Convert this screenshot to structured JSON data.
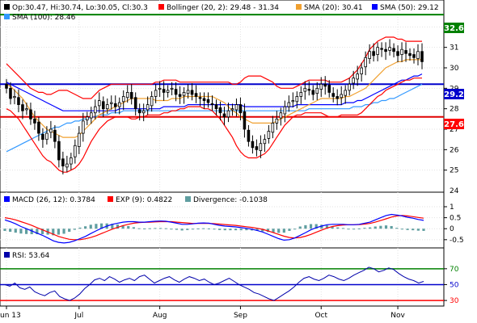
{
  "colors": {
    "candle": "#000000",
    "bollinger": "#ff0000",
    "sma20": "#f0a030",
    "sma50": "#0000ff",
    "sma100": "#3399ff",
    "hline_top": "#008000",
    "hline_mid": "#0000cc",
    "hline_low": "#e00000",
    "macd": "#0000ff",
    "exp": "#ff0000",
    "divergence": "#5f9ea0",
    "rsi": "#0000aa",
    "rsi70": "#008000",
    "rsi50": "#0000cc",
    "rsi30": "#ff0000",
    "price_label_top_bg": "#008000",
    "price_label_mid_bg": "#0000cc",
    "price_label_low_bg": "#ff0000"
  },
  "legend_price": {
    "ohlc": "Op:30.47, Hi:30.74, Lo:30.05, Cl:30.3",
    "bollinger": "Bollinger (20, 2): 29.48 - 31.34",
    "sma20": "SMA (20): 30.41",
    "sma50": "SMA (50): 29.12",
    "sma100": "SMA (100): 28.46"
  },
  "legend_macd": {
    "macd": "MACD (26, 12): 0.3784",
    "exp": "EXP (9): 0.4822",
    "divergence": "Divergence: -0.1038"
  },
  "legend_rsi": {
    "rsi": "RSI: 53.64"
  },
  "price_labels": {
    "top": "32.6",
    "mid": "29.2",
    "low": "27.6"
  },
  "chart_data": [
    {
      "type": "candlestick",
      "ylim": [
        24,
        33
      ],
      "yticks": [
        25,
        26,
        27,
        28,
        29,
        30,
        31,
        32
      ],
      "xticks": [
        "un 13",
        "Jul",
        "Aug",
        "Sep",
        "Oct",
        "Nov"
      ],
      "horizontal_lines": [
        32.6,
        29.2,
        27.6
      ],
      "closes": [
        29.0,
        28.5,
        28.6,
        28.2,
        27.9,
        28.0,
        27.5,
        27.3,
        26.8,
        26.5,
        26.8,
        27.0,
        26.4,
        25.5,
        25.2,
        25.3,
        25.6,
        26.2,
        26.8,
        27.4,
        27.6,
        27.8,
        28.1,
        28.4,
        28.0,
        28.2,
        28.3,
        28.1,
        28.3,
        28.6,
        28.8,
        28.5,
        28.0,
        27.8,
        27.9,
        28.2,
        28.6,
        28.9,
        29.0,
        28.8,
        28.9,
        29.0,
        28.7,
        28.6,
        28.8,
        28.9,
        28.7,
        28.6,
        28.5,
        28.4,
        28.3,
        28.2,
        28.0,
        27.8,
        27.6,
        27.9,
        28.0,
        28.2,
        27.8,
        27.0,
        26.4,
        26.1,
        26.0,
        26.3,
        26.5,
        26.9,
        27.3,
        27.5,
        27.8,
        28.1,
        28.3,
        28.4,
        28.6,
        28.8,
        29.0,
        28.9,
        28.7,
        29.0,
        29.2,
        29.1,
        28.8,
        28.6,
        28.5,
        28.7,
        28.9,
        29.2,
        29.5,
        29.7,
        30.0,
        30.5,
        30.8,
        30.6,
        31.0,
        30.9,
        30.8,
        31.0,
        30.8,
        30.6,
        30.9,
        30.7,
        30.6,
        30.5,
        30.8,
        30.3
      ],
      "bollinger_upper": [
        30.2,
        30.0,
        29.8,
        29.6,
        29.4,
        29.2,
        29.0,
        28.9,
        28.8,
        28.8,
        28.7,
        28.7,
        28.8,
        28.9,
        28.9,
        28.9,
        28.8,
        28.7,
        28.6,
        28.5,
        28.5,
        28.5,
        28.7,
        28.9,
        29.0,
        29.1,
        29.2,
        29.2,
        29.2,
        29.2,
        29.2,
        29.2,
        29.2,
        29.2,
        29.2,
        29.2,
        29.2,
        29.3,
        29.3,
        29.4,
        29.4,
        29.4,
        29.4,
        29.3,
        29.3,
        29.3,
        29.3,
        29.3,
        29.3,
        29.3,
        29.3,
        29.3,
        29.3,
        29.3,
        29.3,
        29.3,
        29.2,
        29.2,
        29.3,
        29.5,
        29.6,
        29.6,
        29.6,
        29.6,
        29.5,
        29.4,
        29.3,
        29.1,
        29.0,
        29.0,
        29.0,
        29.0,
        29.1,
        29.2,
        29.3,
        29.4,
        29.4,
        29.4,
        29.4,
        29.4,
        29.3,
        29.3,
        29.3,
        29.3,
        29.4,
        29.5,
        29.7,
        29.9,
        30.2,
        30.5,
        30.9,
        31.1,
        31.3,
        31.4,
        31.5,
        31.5,
        31.5,
        31.4,
        31.4,
        31.3,
        31.3,
        31.3,
        31.3,
        31.3
      ],
      "bollinger_lower": [
        28.0,
        27.9,
        27.7,
        27.5,
        27.2,
        26.9,
        26.6,
        26.3,
        26.0,
        25.7,
        25.5,
        25.4,
        25.2,
        25.0,
        24.9,
        24.9,
        25.0,
        25.1,
        25.3,
        25.6,
        26.0,
        26.4,
        26.7,
        27.0,
        27.2,
        27.4,
        27.5,
        27.6,
        27.6,
        27.6,
        27.6,
        27.5,
        27.5,
        27.6,
        27.6,
        27.7,
        27.7,
        27.7,
        27.7,
        27.8,
        27.8,
        27.9,
        27.9,
        28.0,
        28.0,
        28.1,
        28.1,
        28.1,
        28.1,
        28.0,
        28.0,
        27.9,
        27.7,
        27.5,
        27.2,
        26.9,
        26.6,
        26.2,
        25.9,
        25.7,
        25.6,
        25.6,
        25.6,
        25.7,
        25.8,
        26.0,
        26.3,
        26.6,
        26.9,
        27.2,
        27.4,
        27.6,
        27.7,
        27.7,
        27.8,
        27.8,
        27.8,
        27.8,
        27.8,
        27.7,
        27.6,
        27.6,
        27.6,
        27.7,
        27.7,
        27.7,
        27.7,
        27.7,
        27.8,
        28.0,
        28.2,
        28.4,
        28.6,
        28.7,
        28.9,
        29.0,
        29.1,
        29.2,
        29.3,
        29.4,
        29.4,
        29.5,
        29.5,
        29.5
      ],
      "sma20": [
        29.2,
        29.1,
        28.9,
        28.7,
        28.5,
        28.2,
        27.9,
        27.6,
        27.4,
        27.2,
        27.0,
        26.9,
        26.8,
        26.7,
        26.6,
        26.6,
        26.6,
        26.6,
        26.7,
        26.9,
        27.1,
        27.3,
        27.5,
        27.7,
        27.8,
        27.9,
        28.0,
        28.1,
        28.2,
        28.3,
        28.4,
        28.5,
        28.5,
        28.5,
        28.5,
        28.5,
        28.5,
        28.4,
        28.4,
        28.4,
        28.4,
        28.5,
        28.5,
        28.5,
        28.6,
        28.6,
        28.6,
        28.6,
        28.6,
        28.6,
        28.6,
        28.6,
        28.5,
        28.4,
        28.3,
        28.1,
        27.9,
        27.8,
        27.6,
        27.5,
        27.4,
        27.3,
        27.3,
        27.3,
        27.3,
        27.3,
        27.3,
        27.4,
        27.5,
        27.6,
        27.7,
        27.8,
        27.9,
        28.0,
        28.1,
        28.2,
        28.3,
        28.4,
        28.5,
        28.5,
        28.5,
        28.5,
        28.5,
        28.5,
        28.6,
        28.6,
        28.7,
        28.8,
        28.9,
        29.0,
        29.2,
        29.4,
        29.6,
        29.8,
        30.0,
        30.1,
        30.2,
        30.3,
        30.3,
        30.4,
        30.4,
        30.4,
        30.4,
        30.4
      ],
      "sma50": [
        29.3,
        29.2,
        29.1,
        29.0,
        28.9,
        28.8,
        28.7,
        28.6,
        28.5,
        28.4,
        28.3,
        28.2,
        28.1,
        28.0,
        27.9,
        27.9,
        27.9,
        27.9,
        27.9,
        27.9,
        27.9,
        27.9,
        27.9,
        27.9,
        27.9,
        27.9,
        27.9,
        27.9,
        28.0,
        28.0,
        28.0,
        28.0,
        28.0,
        28.0,
        28.0,
        28.0,
        28.0,
        28.0,
        28.0,
        28.1,
        28.1,
        28.1,
        28.1,
        28.1,
        28.1,
        28.2,
        28.2,
        28.2,
        28.2,
        28.2,
        28.2,
        28.2,
        28.2,
        28.2,
        28.2,
        28.2,
        28.2,
        28.2,
        28.2,
        28.1,
        28.1,
        28.1,
        28.1,
        28.1,
        28.1,
        28.1,
        28.1,
        28.1,
        28.1,
        28.1,
        28.1,
        28.1,
        28.2,
        28.2,
        28.2,
        28.2,
        28.2,
        28.2,
        28.2,
        28.2,
        28.2,
        28.2,
        28.2,
        28.2,
        28.3,
        28.3,
        28.3,
        28.4,
        28.4,
        28.5,
        28.6,
        28.7,
        28.8,
        28.9,
        29.0,
        29.1,
        29.2,
        29.3,
        29.4,
        29.4,
        29.5,
        29.6,
        29.6,
        29.7
      ],
      "sma100": [
        25.9,
        26.0,
        26.1,
        26.2,
        26.3,
        26.4,
        26.5,
        26.6,
        26.7,
        26.8,
        26.9,
        27.0,
        27.1,
        27.1,
        27.2,
        27.3,
        27.3,
        27.4,
        27.4,
        27.5,
        27.5,
        27.6,
        27.6,
        27.7,
        27.7,
        27.7,
        27.8,
        27.8,
        27.8,
        27.9,
        27.9,
        27.9,
        27.9,
        27.9,
        27.9,
        27.9,
        27.9,
        27.9,
        27.9,
        27.9,
        27.9,
        27.9,
        27.9,
        27.9,
        27.9,
        27.9,
        27.9,
        27.9,
        27.9,
        27.9,
        27.9,
        27.9,
        27.9,
        27.9,
        27.9,
        27.9,
        27.9,
        27.9,
        27.9,
        27.9,
        27.9,
        27.9,
        27.9,
        27.9,
        27.9,
        27.9,
        27.9,
        27.9,
        27.9,
        27.9,
        27.9,
        27.9,
        27.9,
        27.9,
        27.9,
        28.0,
        28.0,
        28.0,
        28.0,
        28.0,
        28.0,
        28.0,
        28.0,
        28.0,
        28.0,
        28.0,
        28.1,
        28.1,
        28.1,
        28.2,
        28.2,
        28.3,
        28.3,
        28.4,
        28.4,
        28.5,
        28.5,
        28.6,
        28.7,
        28.8,
        28.9,
        29.0,
        29.1,
        29.2
      ]
    },
    {
      "type": "line",
      "name": "MACD",
      "ylim": [
        -0.8,
        1.0
      ],
      "yticks": [
        1,
        0.5,
        0,
        -0.5
      ],
      "macd": [
        0.4,
        0.32,
        0.22,
        0.1,
        0.0,
        -0.1,
        -0.2,
        -0.3,
        -0.42,
        -0.55,
        -0.62,
        -0.65,
        -0.62,
        -0.55,
        -0.45,
        -0.35,
        -0.22,
        -0.1,
        0.02,
        0.12,
        0.2,
        0.25,
        0.3,
        0.32,
        0.32,
        0.3,
        0.3,
        0.32,
        0.34,
        0.35,
        0.34,
        0.3,
        0.25,
        0.2,
        0.2,
        0.22,
        0.25,
        0.26,
        0.25,
        0.2,
        0.15,
        0.12,
        0.1,
        0.08,
        0.05,
        0.02,
        -0.02,
        -0.08,
        -0.15,
        -0.25,
        -0.35,
        -0.45,
        -0.52,
        -0.5,
        -0.42,
        -0.3,
        -0.18,
        -0.05,
        0.05,
        0.12,
        0.18,
        0.2,
        0.2,
        0.2,
        0.18,
        0.18,
        0.2,
        0.25,
        0.3,
        0.4,
        0.5,
        0.6,
        0.65,
        0.62,
        0.58,
        0.52,
        0.48,
        0.42,
        0.38
      ],
      "signal": [
        0.5,
        0.46,
        0.4,
        0.32,
        0.24,
        0.15,
        0.05,
        -0.05,
        -0.15,
        -0.25,
        -0.35,
        -0.42,
        -0.48,
        -0.5,
        -0.5,
        -0.46,
        -0.4,
        -0.32,
        -0.22,
        -0.12,
        -0.02,
        0.06,
        0.14,
        0.2,
        0.25,
        0.28,
        0.29,
        0.3,
        0.31,
        0.32,
        0.32,
        0.32,
        0.3,
        0.28,
        0.26,
        0.24,
        0.24,
        0.24,
        0.24,
        0.23,
        0.21,
        0.19,
        0.17,
        0.15,
        0.12,
        0.09,
        0.06,
        0.02,
        -0.03,
        -0.1,
        -0.18,
        -0.26,
        -0.34,
        -0.4,
        -0.42,
        -0.4,
        -0.34,
        -0.26,
        -0.16,
        -0.06,
        0.03,
        0.1,
        0.14,
        0.17,
        0.18,
        0.18,
        0.19,
        0.21,
        0.24,
        0.3,
        0.37,
        0.45,
        0.53,
        0.58,
        0.6,
        0.58,
        0.55,
        0.51,
        0.48
      ]
    },
    {
      "type": "line",
      "name": "RSI",
      "ylim": [
        25,
        80
      ],
      "yticks": [
        70,
        50,
        30
      ],
      "hlines": [
        70,
        50,
        30
      ],
      "values": [
        50,
        48,
        52,
        46,
        44,
        47,
        41,
        38,
        36,
        40,
        42,
        35,
        32,
        30,
        33,
        38,
        45,
        50,
        56,
        58,
        55,
        60,
        57,
        53,
        56,
        58,
        55,
        60,
        62,
        57,
        52,
        55,
        58,
        60,
        56,
        53,
        57,
        60,
        58,
        55,
        57,
        53,
        50,
        52,
        55,
        58,
        54,
        50,
        47,
        44,
        40,
        38,
        35,
        32,
        30,
        34,
        38,
        42,
        47,
        53,
        58,
        60,
        57,
        55,
        58,
        62,
        60,
        57,
        55,
        58,
        62,
        65,
        68,
        72,
        70,
        66,
        68,
        71,
        69,
        64,
        60,
        57,
        55,
        52,
        54
      ],
      "label": "RSI: 53.64"
    }
  ]
}
